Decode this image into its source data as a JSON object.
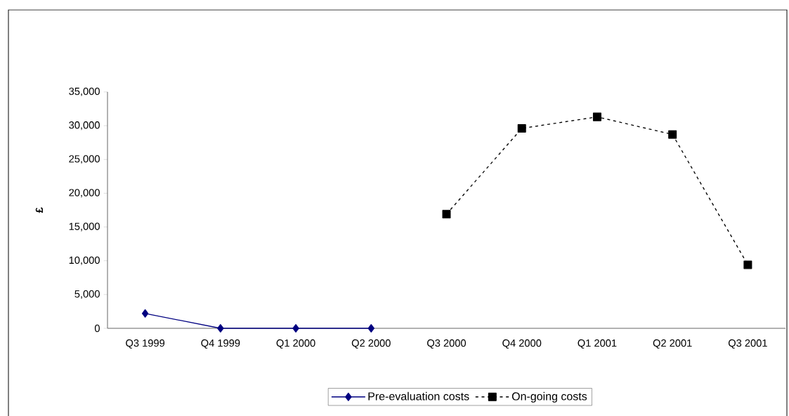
{
  "chart_data": {
    "type": "line",
    "ylabel": "£",
    "categories": [
      "Q3 1999",
      "Q4 1999",
      "Q1 2000",
      "Q2 2000",
      "Q3 2000",
      "Q4 2000",
      "Q1 2001",
      "Q2 2001",
      "Q3 2001"
    ],
    "series": [
      {
        "name": "Pre-evaluation costs",
        "color": "#000080",
        "marker": "diamond",
        "line_style": "solid",
        "values": [
          2200,
          0,
          0,
          0,
          null,
          null,
          null,
          null,
          null
        ]
      },
      {
        "name": "On-going costs",
        "color": "#000000",
        "marker": "square",
        "line_style": "dashed",
        "values": [
          null,
          null,
          null,
          null,
          16900,
          29600,
          31300,
          28700,
          9400
        ]
      }
    ],
    "ylim": [
      0,
      35000
    ],
    "yticks": [
      0,
      {
        "value": 5000,
        "label": "5,000"
      },
      {
        "value": 10000,
        "label": "10,000"
      },
      {
        "value": 15000,
        "label": "15,000"
      },
      {
        "value": 20000,
        "label": "20,000"
      },
      {
        "value": 25000,
        "label": "25,000"
      },
      {
        "value": 30000,
        "label": "30,000"
      },
      {
        "value": 35000,
        "label": "35,000"
      }
    ],
    "grid": false,
    "legend": "bottom"
  }
}
